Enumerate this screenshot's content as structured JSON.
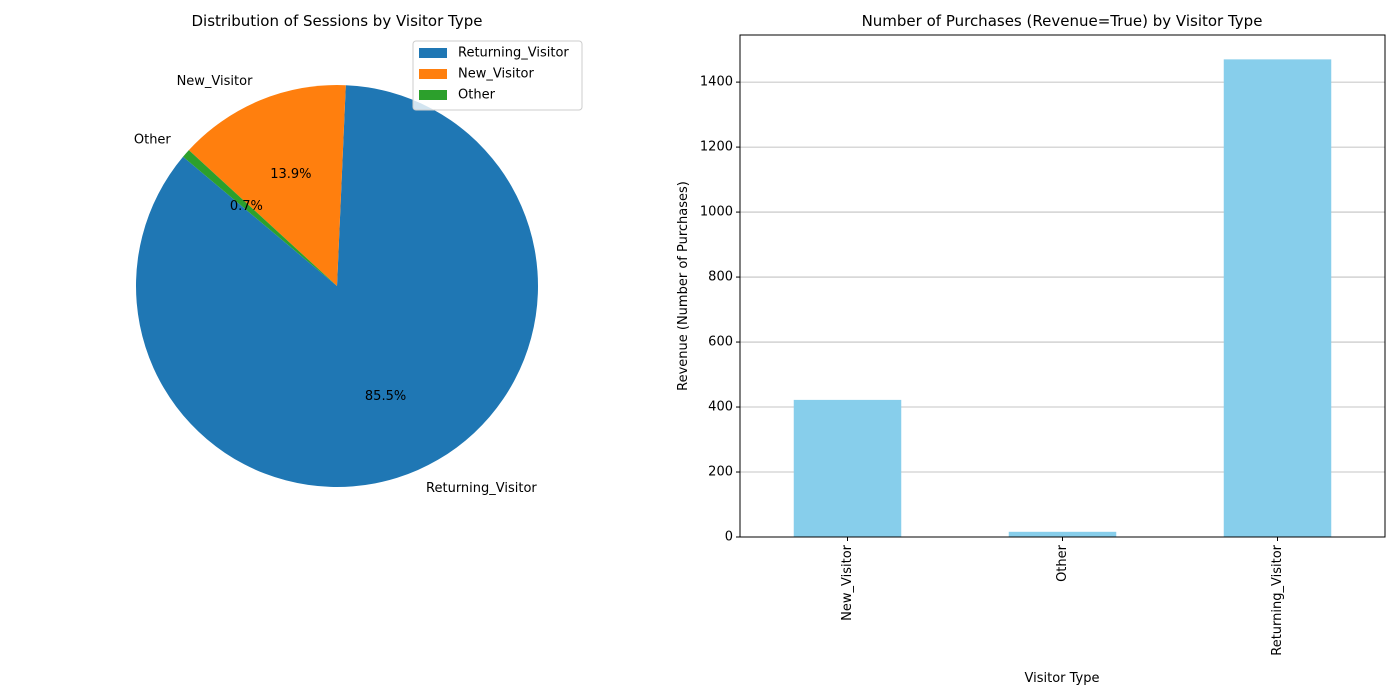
{
  "chart_data": [
    {
      "type": "pie",
      "title": "Distribution of Sessions by Visitor Type",
      "slices": [
        {
          "label": "Returning_Visitor",
          "percent": 85.5,
          "pct_text": "85.5%",
          "color": "#1f77b4"
        },
        {
          "label": "New_Visitor",
          "percent": 13.9,
          "pct_text": "13.9%",
          "color": "#ff7f0e"
        },
        {
          "label": "Other",
          "percent": 0.7,
          "pct_text": "0.7%",
          "color": "#2ca02c"
        }
      ],
      "legend": {
        "position": "upper-right",
        "entries": [
          "Returning_Visitor",
          "New_Visitor",
          "Other"
        ]
      }
    },
    {
      "type": "bar",
      "title": "Number of Purchases (Revenue=True) by Visitor Type",
      "categories": [
        "New_Visitor",
        "Other",
        "Returning_Visitor"
      ],
      "values": [
        422,
        16,
        1470
      ],
      "bar_color": "#87ceeb",
      "xlabel": "Visitor Type",
      "ylabel": "Revenue (Number of Purchases)",
      "ylim": [
        0,
        1545
      ],
      "yticks": [
        0,
        200,
        400,
        600,
        800,
        1000,
        1200,
        1400
      ],
      "grid": "y"
    }
  ]
}
